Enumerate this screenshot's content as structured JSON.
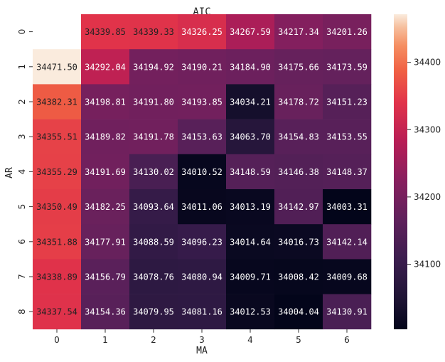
{
  "chart_data": {
    "type": "heatmap",
    "title": "AIC",
    "xlabel": "MA",
    "ylabel": "AR",
    "x_tick_labels": [
      "0",
      "1",
      "2",
      "3",
      "4",
      "5",
      "6"
    ],
    "y_tick_labels": [
      "0",
      "1",
      "2",
      "3",
      "4",
      "5",
      "6",
      "7",
      "8"
    ],
    "values": [
      [
        null,
        34339.85,
        34339.33,
        34326.25,
        34267.59,
        34217.34,
        34201.26
      ],
      [
        34471.5,
        34292.04,
        34194.92,
        34190.21,
        34184.9,
        34175.66,
        34173.59
      ],
      [
        34382.31,
        34198.81,
        34191.8,
        34193.85,
        34034.21,
        34178.72,
        34151.23
      ],
      [
        34355.51,
        34189.82,
        34191.78,
        34153.63,
        34063.7,
        34154.83,
        34153.55
      ],
      [
        34355.29,
        34191.69,
        34130.02,
        34010.52,
        34148.59,
        34146.38,
        34148.37
      ],
      [
        34350.49,
        34182.25,
        34093.64,
        34011.06,
        34013.19,
        34142.97,
        34003.31
      ],
      [
        34351.88,
        34177.91,
        34088.59,
        34096.23,
        34014.64,
        34016.73,
        34142.14
      ],
      [
        34338.89,
        34156.79,
        34078.76,
        34080.94,
        34009.71,
        34008.42,
        34009.68
      ],
      [
        34337.54,
        34154.36,
        34079.95,
        34081.16,
        34012.53,
        34004.04,
        34130.91
      ]
    ],
    "cell_labels": [
      [
        "",
        "34339.85",
        "34339.33",
        "34326.25",
        "34267.59",
        "34217.34",
        "34201.26"
      ],
      [
        "34471.50",
        "34292.04",
        "34194.92",
        "34190.21",
        "34184.90",
        "34175.66",
        "34173.59"
      ],
      [
        "34382.31",
        "34198.81",
        "34191.80",
        "34193.85",
        "34034.21",
        "34178.72",
        "34151.23"
      ],
      [
        "34355.51",
        "34189.82",
        "34191.78",
        "34153.63",
        "34063.70",
        "34154.83",
        "34153.55"
      ],
      [
        "34355.29",
        "34191.69",
        "34130.02",
        "34010.52",
        "34148.59",
        "34146.38",
        "34148.37"
      ],
      [
        "34350.49",
        "34182.25",
        "34093.64",
        "34011.06",
        "34013.19",
        "34142.97",
        "34003.31"
      ],
      [
        "34351.88",
        "34177.91",
        "34088.59",
        "34096.23",
        "34014.64",
        "34016.73",
        "34142.14"
      ],
      [
        "34338.89",
        "34156.79",
        "34078.76",
        "34080.94",
        "34009.71",
        "34008.42",
        "34009.68"
      ],
      [
        "34337.54",
        "34154.36",
        "34079.95",
        "34081.16",
        "34012.53",
        "34004.04",
        "34130.91"
      ]
    ],
    "colorbar": {
      "min": 34003.31,
      "max": 34471.5,
      "ticks": [
        34100,
        34200,
        34300,
        34400
      ],
      "tick_labels": [
        "34100",
        "34200",
        "34300",
        "34400"
      ],
      "colormap": "rocket"
    }
  }
}
